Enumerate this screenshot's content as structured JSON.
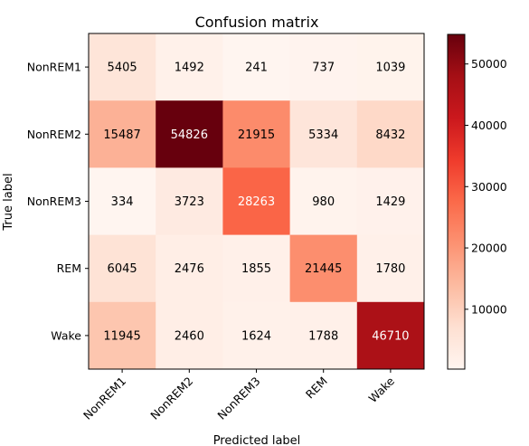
{
  "chart_data": {
    "type": "heatmap",
    "title": "Confusion matrix",
    "xlabel": "Predicted label",
    "ylabel": "True label",
    "x_categories": [
      "NonREM1",
      "NonREM2",
      "NonREM3",
      "REM",
      "Wake"
    ],
    "y_categories": [
      "NonREM1",
      "NonREM2",
      "NonREM3",
      "REM",
      "Wake"
    ],
    "values": [
      [
        5405,
        1492,
        241,
        737,
        1039
      ],
      [
        15487,
        54826,
        21915,
        5334,
        8432
      ],
      [
        334,
        3723,
        28263,
        980,
        1429
      ],
      [
        6045,
        2476,
        1855,
        21445,
        1780
      ],
      [
        11945,
        2460,
        1624,
        1788,
        46710
      ]
    ],
    "colormap": "Reds",
    "colorbar": {
      "range": [
        241,
        54826
      ],
      "ticks": [
        10000,
        20000,
        30000,
        40000,
        50000
      ],
      "tick_labels": [
        "10000",
        "20000",
        "30000",
        "40000",
        "50000"
      ]
    },
    "text_color_dark": "#000000",
    "text_color_light": "#ffffff"
  }
}
